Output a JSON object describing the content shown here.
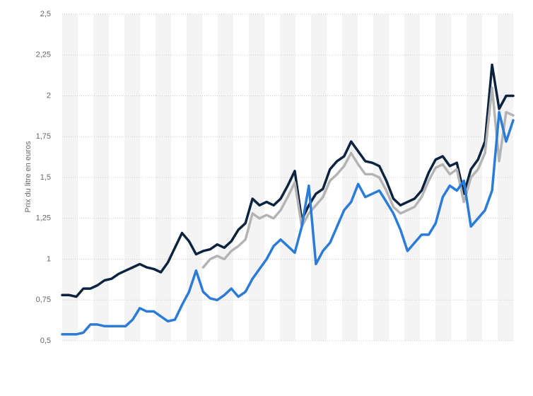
{
  "chart_data": {
    "type": "line",
    "y_label": "Prix du litre en euros",
    "ylim": [
      0.5,
      2.5
    ],
    "yticks": [
      {
        "value": 0.5,
        "label": "0,5"
      },
      {
        "value": 0.75,
        "label": "0,75"
      },
      1,
      {
        "value": 1.25,
        "label": "1,25"
      },
      {
        "value": 1.5,
        "label": "1,5"
      },
      {
        "value": 1.75,
        "label": "1,75"
      },
      2,
      {
        "value": 2.25,
        "label": "2,25"
      },
      {
        "value": 2.5,
        "label": "2,5"
      }
    ],
    "grid": true,
    "categories": [
      null,
      null,
      null,
      null,
      null,
      null,
      null,
      null,
      null,
      null,
      null,
      null,
      null,
      null,
      null,
      null,
      null,
      null,
      null,
      null,
      null,
      null,
      null,
      null,
      null,
      null,
      null,
      null,
      null,
      null,
      null,
      null,
      null,
      null,
      null,
      null,
      null,
      null,
      null,
      null,
      null,
      null,
      null,
      null,
      null,
      null,
      null,
      null,
      null,
      null,
      null,
      null,
      null,
      null,
      null,
      null,
      null,
      null,
      null,
      null,
      null,
      null,
      null,
      null,
      null
    ],
    "series": [
      {
        "color": "#0c2340",
        "values": [
          0.78,
          0.78,
          0.77,
          0.82,
          0.82,
          0.84,
          0.87,
          0.88,
          0.91,
          0.93,
          0.95,
          0.97,
          0.95,
          0.94,
          0.92,
          0.98,
          1.07,
          1.16,
          1.11,
          1.03,
          1.05,
          1.06,
          1.09,
          1.07,
          1.11,
          1.18,
          1.22,
          1.37,
          1.33,
          1.35,
          1.33,
          1.37,
          1.45,
          1.54,
          1.24,
          1.33,
          1.4,
          1.43,
          1.55,
          1.6,
          1.63,
          1.72,
          1.66,
          1.6,
          1.59,
          1.57,
          1.48,
          1.37,
          1.33,
          1.35,
          1.37,
          1.42,
          1.53,
          1.61,
          1.63,
          1.57,
          1.59,
          1.4,
          1.55,
          1.61,
          1.72,
          2.19,
          1.92,
          2.0,
          2.0
        ]
      },
      {
        "color": "#b4b4b4",
        "values": [
          null,
          null,
          null,
          null,
          null,
          null,
          null,
          null,
          null,
          null,
          null,
          null,
          null,
          null,
          null,
          null,
          null,
          null,
          null,
          null,
          0.95,
          1.0,
          1.02,
          1.0,
          1.05,
          1.08,
          1.12,
          1.28,
          1.25,
          1.27,
          1.25,
          1.3,
          1.38,
          1.47,
          1.2,
          1.28,
          1.33,
          1.38,
          1.48,
          1.52,
          1.57,
          1.65,
          1.58,
          1.52,
          1.52,
          1.5,
          1.42,
          1.32,
          1.28,
          1.3,
          1.32,
          1.38,
          1.48,
          1.56,
          1.58,
          1.52,
          1.55,
          1.35,
          1.5,
          1.55,
          1.65,
          2.05,
          1.6,
          1.9,
          1.88
        ]
      },
      {
        "color": "#2b7bd8",
        "values": [
          0.54,
          0.54,
          0.54,
          0.55,
          0.6,
          0.6,
          0.59,
          0.59,
          0.59,
          0.59,
          0.63,
          0.7,
          0.68,
          0.68,
          0.65,
          0.62,
          0.63,
          0.72,
          0.8,
          0.93,
          0.8,
          0.76,
          0.75,
          0.78,
          0.82,
          0.77,
          0.8,
          0.88,
          0.94,
          1.0,
          1.08,
          1.12,
          1.08,
          1.04,
          1.2,
          1.45,
          0.97,
          1.05,
          1.1,
          1.2,
          1.3,
          1.35,
          1.46,
          1.38,
          1.4,
          1.42,
          1.35,
          1.28,
          1.18,
          1.05,
          1.1,
          1.15,
          1.15,
          1.22,
          1.38,
          1.45,
          1.42,
          1.48,
          1.2,
          1.25,
          1.3,
          1.42,
          1.9,
          1.72,
          1.85
        ]
      }
    ]
  }
}
